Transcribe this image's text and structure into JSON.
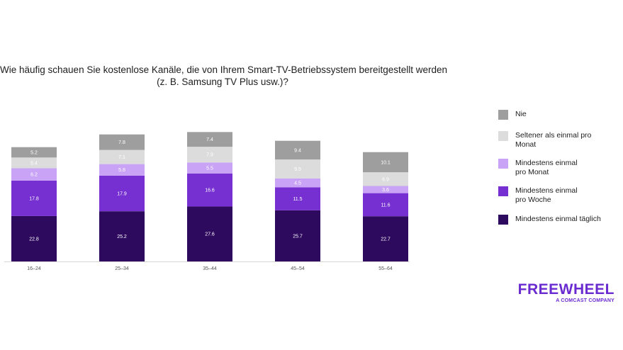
{
  "title_line1": "Wie häufig schauen Sie kostenlose Kanäle, die von Ihrem Smart-TV-Betriebssystem bereitgestellt werden",
  "title_line2": "(z. B. Samsung TV Plus usw.)?",
  "logo": {
    "word": "FREEWHEEL",
    "sub": "A COMCAST COMPANY",
    "color": "#6a2bd0"
  },
  "chart_data": {
    "type": "bar",
    "stacked": true,
    "categories": [
      "16–24",
      "25–34",
      "35–44",
      "45–54",
      "55–64"
    ],
    "series": [
      {
        "name": "Mindestens einmal täglich",
        "color": "#2d0a5e",
        "label_color": "#ffffff",
        "values": [
          22.8,
          25.2,
          27.6,
          25.7,
          22.7
        ]
      },
      {
        "name": "Mindestens einmal pro Woche",
        "color": "#7630d1",
        "label_color": "#ffffff",
        "values": [
          17.8,
          17.9,
          16.6,
          11.5,
          11.6
        ]
      },
      {
        "name": "Mindestens einmal pro Monat",
        "color": "#c9a3f5",
        "label_color": "#ffffff",
        "values": [
          6.2,
          5.8,
          5.5,
          4.5,
          3.6
        ]
      },
      {
        "name": "Seltener als einmal pro Monat",
        "color": "#dcdcdc",
        "label_color": "#ffffff",
        "values": [
          5.4,
          7.1,
          7.9,
          9.5,
          6.9
        ]
      },
      {
        "name": "Nie",
        "color": "#9e9e9e",
        "label_color": "#ffffff",
        "values": [
          5.2,
          7.8,
          7.4,
          9.4,
          10.1
        ]
      }
    ],
    "legend_order": [
      "Nie",
      "Seltener als einmal pro Monat",
      "Mindestens einmal pro Monat",
      "Mindestens einmal pro Woche",
      "Mindestens einmal täglich"
    ],
    "legend_labels": {
      "Nie": [
        "Nie"
      ],
      "Seltener als einmal pro Monat": [
        "Seltener als einmal pro",
        "Monat"
      ],
      "Mindestens einmal pro Monat": [
        "Mindestens einmal",
        "pro Monat"
      ],
      "Mindestens einmal pro Woche": [
        "Mindestens einmal",
        "pro Woche"
      ],
      "Mindestens einmal täglich": [
        "Mindestens einmal täglich"
      ]
    },
    "legend_position": "right",
    "ylim": [
      0,
      75
    ],
    "grid": false
  }
}
